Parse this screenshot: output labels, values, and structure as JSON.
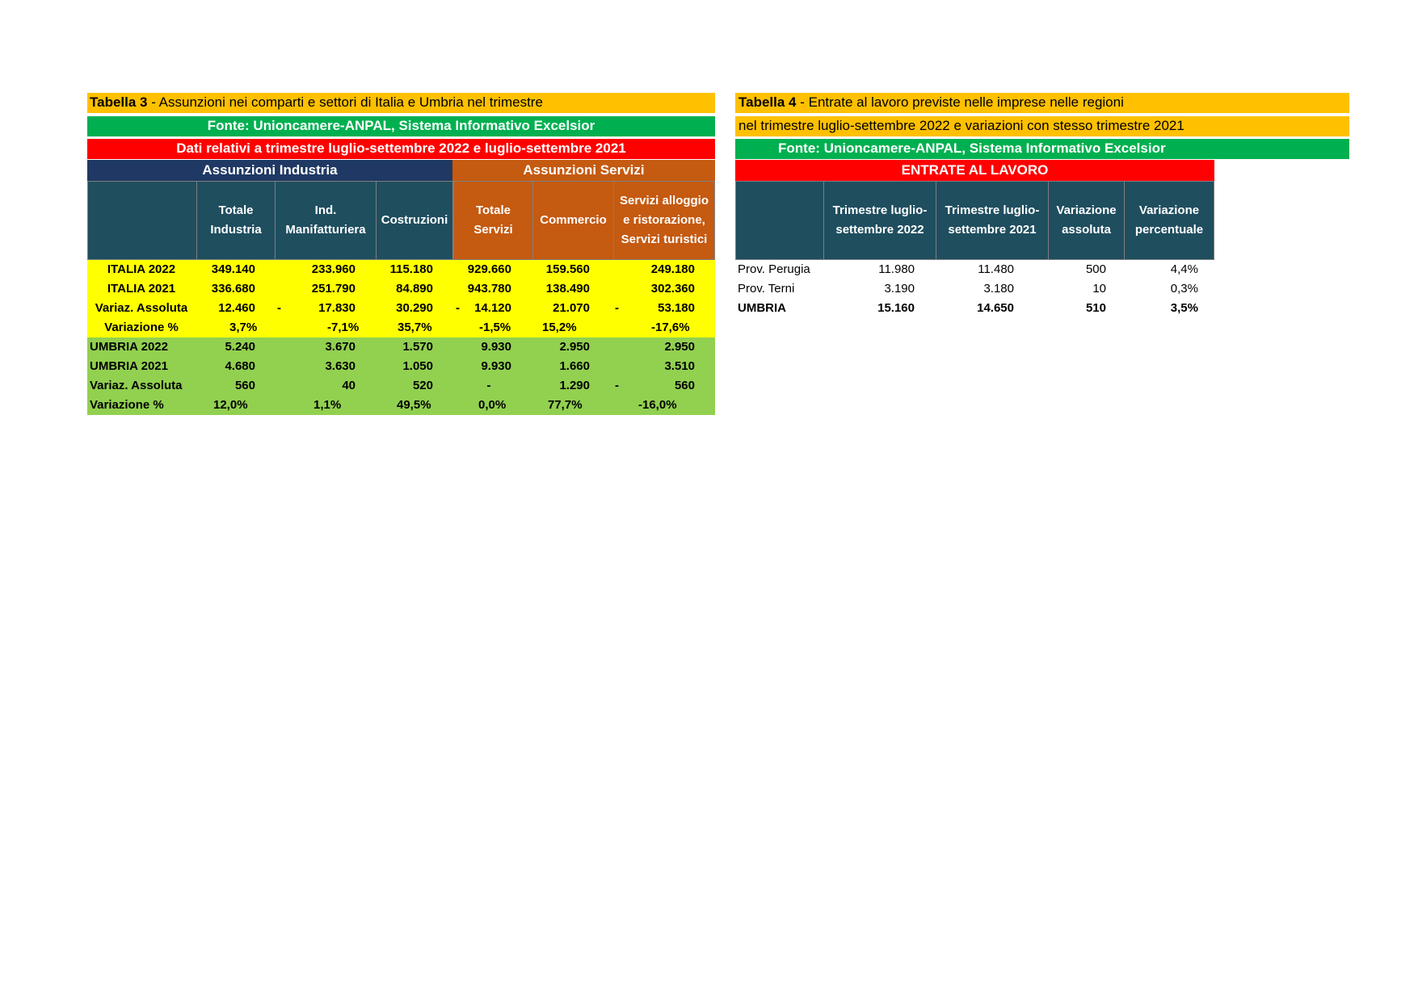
{
  "table3": {
    "title_bold": "Tabella 3",
    "title_rest": " - Assunzioni nei comparti e settori di Italia e Umbria nel trimestre",
    "source": "Fonte: Unioncamere-ANPAL, Sistema Informativo Excelsior",
    "period": "Dati relativi a trimestre luglio-settembre 2022 e luglio-settembre 2021",
    "group_industry": "Assunzioni Industria",
    "group_services": "Assunzioni Servizi",
    "columns": [
      "Totale Industria",
      "Ind. Manifatturiera",
      "Costruzioni",
      "Totale Servizi",
      "Commercio",
      "Servizi alloggio e ristorazione, Servizi turistici"
    ],
    "colors": {
      "title": "#ffc000",
      "source": "#00b050",
      "period": "#ff0000",
      "industry": "#1f3864",
      "services": "#c55a11",
      "italy_rows": "#ffff00",
      "umbria_rows": "#92d050",
      "header_cell": "#1f4e5f"
    },
    "italy_rows": [
      {
        "label": "ITALIA 2022",
        "values": [
          "349.140",
          "233.960",
          "115.180",
          "929.660",
          "159.560",
          "249.180"
        ],
        "dashes": [
          "",
          "",
          "",
          "",
          "",
          ""
        ]
      },
      {
        "label": "ITALIA 2021",
        "values": [
          "336.680",
          "251.790",
          "84.890",
          "943.780",
          "138.490",
          "302.360"
        ],
        "dashes": [
          "",
          "",
          "",
          "",
          "",
          ""
        ]
      },
      {
        "label": "Variaz. Assoluta",
        "values": [
          "12.460",
          "17.830",
          "30.290",
          "14.120",
          "21.070",
          "53.180"
        ],
        "dashes": [
          "",
          "-",
          "",
          "-",
          "",
          "-"
        ]
      },
      {
        "label": "Variazione %",
        "values": [
          "3,7%",
          "-7,1%",
          "35,7%",
          "-1,5%",
          "15,2%",
          "-17,6%"
        ],
        "dashes": [
          "",
          "",
          "",
          "",
          "",
          ""
        ]
      }
    ],
    "umbria_rows": [
      {
        "label": "UMBRIA 2022",
        "values": [
          "5.240",
          "3.670",
          "1.570",
          "9.930",
          "2.950",
          "2.950"
        ],
        "dashes": [
          "",
          "",
          "",
          "",
          "",
          ""
        ]
      },
      {
        "label": "UMBRIA 2021",
        "values": [
          "4.680",
          "3.630",
          "1.050",
          "9.930",
          "1.660",
          "3.510"
        ],
        "dashes": [
          "",
          "",
          "",
          "",
          "",
          ""
        ]
      },
      {
        "label": "Variaz. Assoluta",
        "values": [
          "560",
          "40",
          "520",
          "-",
          "1.290",
          "560"
        ],
        "dashes": [
          "",
          "",
          "",
          "",
          "",
          "-"
        ]
      },
      {
        "label": "Variazione %",
        "values": [
          "12,0%",
          "1,1%",
          "49,5%",
          "0,0%",
          "77,7%",
          "-16,0%"
        ],
        "dashes": [
          "",
          "",
          "",
          "",
          "",
          ""
        ]
      }
    ]
  },
  "table4": {
    "title_bold": "Tabella 4",
    "title_rest": " - Entrate al lavoro previste nelle imprese nelle regioni",
    "title_line2": "nel trimestre luglio-settembre 2022 e variazioni con stesso trimestre 2021",
    "source": "Fonte: Unioncamere-ANPAL, Sistema Informativo Excelsior",
    "section": "ENTRATE AL LAVORO",
    "columns": [
      "Trimestre luglio-settembre 2022",
      "Trimestre luglio-settembre 2021",
      "Variazione assoluta",
      "Variazione percentuale"
    ],
    "rows": [
      {
        "label": "Prov. Perugia",
        "values": [
          "11.980",
          "11.480",
          "500",
          "4,4%"
        ],
        "bold": false
      },
      {
        "label": "Prov. Terni",
        "values": [
          "3.190",
          "3.180",
          "10",
          "0,3%"
        ],
        "bold": false
      },
      {
        "label": "UMBRIA",
        "values": [
          "15.160",
          "14.650",
          "510",
          "3,5%"
        ],
        "bold": true
      }
    ]
  }
}
